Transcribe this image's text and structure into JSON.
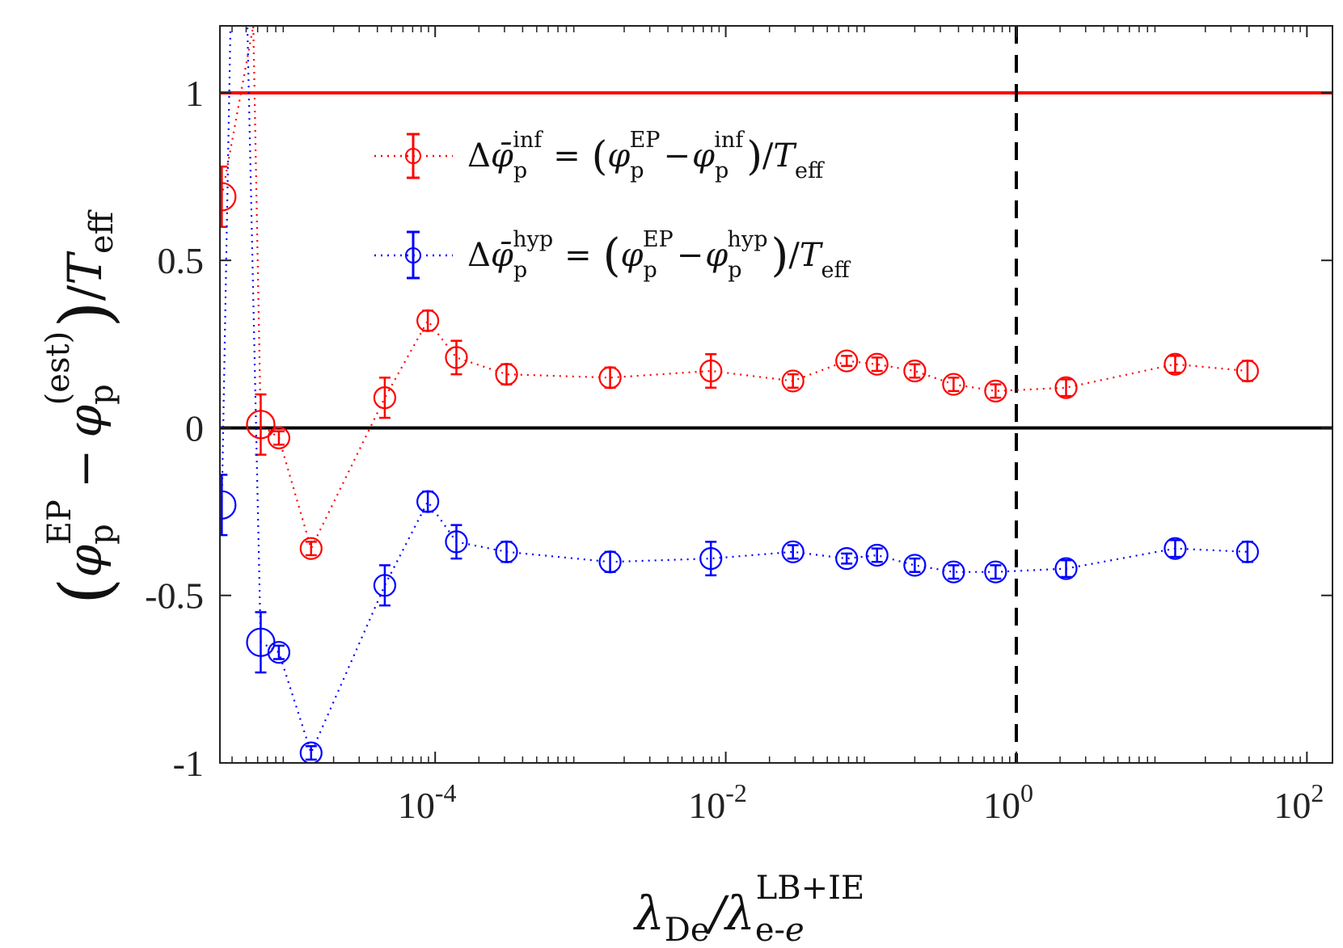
{
  "chart_data": {
    "type": "scatter",
    "x_scale": "log",
    "xlim": [
      3.3e-06,
      150
    ],
    "ylim": [
      -1,
      1.2
    ],
    "grid": false,
    "xlabel": {
      "main": "λ",
      "main_sub": "De",
      "slash": "/λ",
      "sub": "e-",
      "sub_italic": "e",
      "sup": "LB+IE"
    },
    "ylabel": {
      "open": "(",
      "phi1": "φ",
      "phi1_sub": "p",
      "phi1_sup": "EP",
      "minus": "−",
      "phi2": "φ",
      "phi2_sub": "p",
      "phi2_sup": "(est)",
      "close": ")",
      "slash": "/",
      "T": "T",
      "T_sub": "eff"
    },
    "x_ticks": [
      {
        "value": 0.0001,
        "base": "10",
        "exp": "-4"
      },
      {
        "value": 0.01,
        "base": "10",
        "exp": "-2"
      },
      {
        "value": 1,
        "base": "10",
        "exp": "0"
      },
      {
        "value": 100,
        "base": "10",
        "exp": "2"
      }
    ],
    "y_ticks": [
      {
        "value": 1,
        "label": "1"
      },
      {
        "value": 0.5,
        "label": "0.5"
      },
      {
        "value": 0,
        "label": "0"
      },
      {
        "value": -0.5,
        "label": "-0.5"
      },
      {
        "value": -1,
        "label": "-1"
      }
    ],
    "reference_lines": [
      {
        "orientation": "horizontal",
        "value": 1,
        "color": "#ff0000",
        "style": "solid"
      },
      {
        "orientation": "horizontal",
        "value": 0,
        "color": "#000000",
        "style": "solid"
      },
      {
        "orientation": "vertical",
        "value": 1,
        "color": "#000000",
        "style": "dashed"
      }
    ],
    "series": [
      {
        "name": "inf",
        "color": "#ff0000",
        "legend": {
          "delta": "Δ",
          "phibar": "φ̄",
          "phibar_sub": "p",
          "phibar_sup": "inf",
          "eq": "=",
          "lp": "(",
          "phiA": "φ",
          "phiA_sub": "p",
          "phiA_sup": "EP",
          "minus": "−",
          "phiB": "φ",
          "phiB_sub": "p",
          "phiB_sup": "inf",
          "rp": ")",
          "slash": "/",
          "T": "T",
          "T_sub": "eff"
        },
        "points": [
          {
            "x": 3.4e-06,
            "y": 0.69,
            "err": 0.09,
            "big": true
          },
          {
            "x": 5.6e-06,
            "y": 1.2
          },
          {
            "x": 6.3e-06,
            "y": 0.01,
            "err": 0.09,
            "big": true
          },
          {
            "x": 8.4e-06,
            "y": -0.03,
            "err": 0.02
          },
          {
            "x": 1.4e-05,
            "y": -0.36,
            "err": 0.02
          },
          {
            "x": 4.5e-05,
            "y": 0.09,
            "err": 0.06
          },
          {
            "x": 8.9e-05,
            "y": 0.32,
            "err": 0.03
          },
          {
            "x": 0.00014,
            "y": 0.21,
            "err": 0.05
          },
          {
            "x": 0.00031,
            "y": 0.16,
            "err": 0.03
          },
          {
            "x": 0.0016,
            "y": 0.15,
            "err": 0.03
          },
          {
            "x": 0.0079,
            "y": 0.17,
            "err": 0.05
          },
          {
            "x": 0.029,
            "y": 0.14,
            "err": 0.02
          },
          {
            "x": 0.068,
            "y": 0.2,
            "err": 0.015
          },
          {
            "x": 0.11,
            "y": 0.19,
            "err": 0.02
          },
          {
            "x": 0.2,
            "y": 0.17,
            "err": 0.02
          },
          {
            "x": 0.37,
            "y": 0.13,
            "err": 0.02
          },
          {
            "x": 0.72,
            "y": 0.11,
            "err": 0.02
          },
          {
            "x": 2.2,
            "y": 0.12,
            "err": 0.025
          },
          {
            "x": 12.4,
            "y": 0.19,
            "err": 0.025
          },
          {
            "x": 39,
            "y": 0.17,
            "err": 0.03
          }
        ]
      },
      {
        "name": "hyp",
        "color": "#0000ff",
        "legend": {
          "delta": "Δ",
          "phibar": "φ̄",
          "phibar_sub": "p",
          "phibar_sup": "hyp",
          "eq": "=",
          "lp": "(",
          "phiA": "φ",
          "phiA_sub": "p",
          "phiA_sup": "EP",
          "minus": "−",
          "phiB": "φ",
          "phiB_sub": "p",
          "phiB_sup": "hyp",
          "rp": ")",
          "slash": "/",
          "T": "T",
          "T_sub": "eff"
        },
        "points": [
          {
            "x": 3.4e-06,
            "y": -0.23,
            "err": 0.09,
            "big": true
          },
          {
            "x": 3.9e-06,
            "y": 1.2
          },
          {
            "x": 5.1e-06,
            "y": 1.2
          },
          {
            "x": 6.3e-06,
            "y": -0.64,
            "err": 0.09,
            "big": true
          },
          {
            "x": 8.4e-06,
            "y": -0.67,
            "err": 0.02
          },
          {
            "x": 1.4e-05,
            "y": -0.97,
            "err": 0.02
          },
          {
            "x": 4.5e-05,
            "y": -0.47,
            "err": 0.06
          },
          {
            "x": 8.9e-05,
            "y": -0.22,
            "err": 0.03
          },
          {
            "x": 0.00014,
            "y": -0.34,
            "err": 0.05
          },
          {
            "x": 0.00031,
            "y": -0.37,
            "err": 0.03
          },
          {
            "x": 0.0016,
            "y": -0.4,
            "err": 0.03
          },
          {
            "x": 0.0079,
            "y": -0.39,
            "err": 0.05
          },
          {
            "x": 0.029,
            "y": -0.37,
            "err": 0.02
          },
          {
            "x": 0.068,
            "y": -0.39,
            "err": 0.015
          },
          {
            "x": 0.11,
            "y": -0.38,
            "err": 0.02
          },
          {
            "x": 0.2,
            "y": -0.41,
            "err": 0.02
          },
          {
            "x": 0.37,
            "y": -0.43,
            "err": 0.02
          },
          {
            "x": 0.72,
            "y": -0.43,
            "err": 0.02
          },
          {
            "x": 2.2,
            "y": -0.42,
            "err": 0.025
          },
          {
            "x": 12.4,
            "y": -0.36,
            "err": 0.025
          },
          {
            "x": 39,
            "y": -0.37,
            "err": 0.03
          }
        ]
      }
    ]
  }
}
